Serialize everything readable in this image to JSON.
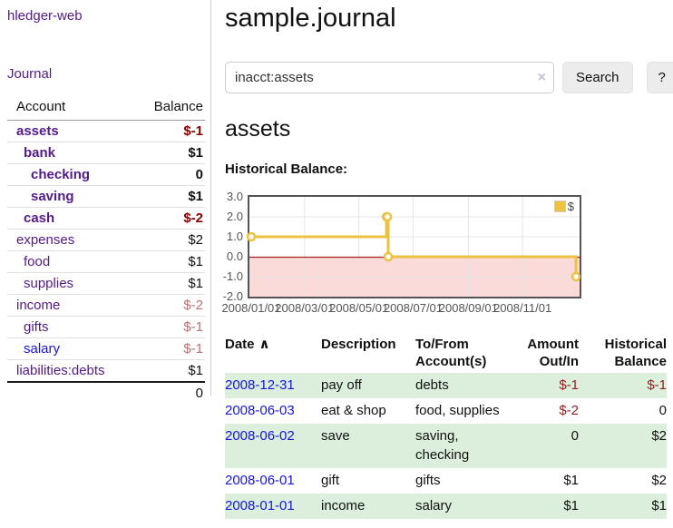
{
  "app": {
    "brand": "hledger-web",
    "nav_journal": "Journal"
  },
  "sidebar": {
    "header": {
      "account": "Account",
      "balance": "Balance"
    },
    "rows": [
      {
        "name": "assets",
        "balance": "$-1",
        "depth": 0,
        "emph": true,
        "link": "visited",
        "tone": "neg"
      },
      {
        "name": "bank",
        "balance": "$1",
        "depth": 1,
        "emph": true,
        "link": "visited",
        "tone": "normal"
      },
      {
        "name": "checking",
        "balance": "0",
        "depth": 2,
        "emph": true,
        "link": "visited",
        "tone": "normal"
      },
      {
        "name": "saving",
        "balance": "$1",
        "depth": 2,
        "emph": true,
        "link": "visited",
        "tone": "normal"
      },
      {
        "name": "cash",
        "balance": "$-2",
        "depth": 1,
        "emph": true,
        "link": "visited",
        "tone": "neg"
      },
      {
        "name": "expenses",
        "balance": "$2",
        "depth": 0,
        "emph": false,
        "link": "visited",
        "tone": "normal"
      },
      {
        "name": "food",
        "balance": "$1",
        "depth": 1,
        "emph": false,
        "link": "visited",
        "tone": "normal"
      },
      {
        "name": "supplies",
        "balance": "$1",
        "depth": 1,
        "emph": false,
        "link": "visited",
        "tone": "normal"
      },
      {
        "name": "income",
        "balance": "$-2",
        "depth": 0,
        "emph": false,
        "link": "visited",
        "tone": "negsoft"
      },
      {
        "name": "gifts",
        "balance": "$-1",
        "depth": 1,
        "emph": false,
        "link": "visited",
        "tone": "negsoft"
      },
      {
        "name": "salary",
        "balance": "$-1",
        "depth": 1,
        "emph": false,
        "link": "unvisited",
        "tone": "negsoft"
      },
      {
        "name": "liabilities:debts",
        "balance": "$1",
        "depth": 0,
        "emph": false,
        "link": "visited",
        "tone": "normal"
      }
    ],
    "total": "0"
  },
  "main": {
    "title": "sample.journal",
    "search": {
      "value": "inacct:assets",
      "clear_icon": "×",
      "button": "Search",
      "help": "?"
    },
    "account_heading": "assets",
    "chart_label": "Historical Balance:"
  },
  "chart_data": {
    "type": "line",
    "title": "Historical Balance",
    "steps": true,
    "series": [
      {
        "name": "$",
        "color": "#edc240",
        "points": [
          [
            "2008-01-01",
            1
          ],
          [
            "2008-06-01",
            2
          ],
          [
            "2008-06-02",
            2
          ],
          [
            "2008-06-03",
            0
          ],
          [
            "2008-12-31",
            -1
          ]
        ]
      }
    ],
    "ylim": [
      -2.0,
      3.0
    ],
    "yticks": [
      "3.0",
      "2.0",
      "1.0",
      "0.0",
      "-1.0",
      "-2.0"
    ],
    "xticks": [
      "2008/01/01",
      "2008/03/01",
      "2008/05/01",
      "2008/07/01",
      "2008/09/01",
      "2008/11/01"
    ],
    "x_start": "2008-01-01",
    "x_end": "2008-12-31",
    "grid": true,
    "legend_position": "top-right",
    "marker": "open-circle",
    "negative_region_color": "#fbdada",
    "zero_line_color": "#a82020",
    "grid_color": "#e4e4e4"
  },
  "register": {
    "headers": {
      "date": "Date",
      "description": "Description",
      "accounts": "To/From Account(s)",
      "amount": "Amount Out/In",
      "balance": "Historical Balance"
    },
    "sort_icon": "∧",
    "rows": [
      {
        "date": "2008-12-31",
        "description": "pay off",
        "accounts": "debts",
        "amount": "$-1",
        "amount_negative": true,
        "balance": "$-1",
        "balance_negative": true
      },
      {
        "date": "2008-06-03",
        "description": "eat & shop",
        "accounts": "food, supplies",
        "amount": "$-2",
        "amount_negative": true,
        "balance": "0",
        "balance_negative": false
      },
      {
        "date": "2008-06-02",
        "description": "save",
        "accounts": "saving, checking",
        "amount": "0",
        "amount_negative": false,
        "balance": "$2",
        "balance_negative": false
      },
      {
        "date": "2008-06-01",
        "description": "gift",
        "accounts": "gifts",
        "amount": "$1",
        "amount_negative": false,
        "balance": "$2",
        "balance_negative": false
      },
      {
        "date": "2008-01-01",
        "description": "income",
        "accounts": "salary",
        "amount": "$1",
        "amount_negative": false,
        "balance": "$1",
        "balance_negative": false
      }
    ]
  }
}
